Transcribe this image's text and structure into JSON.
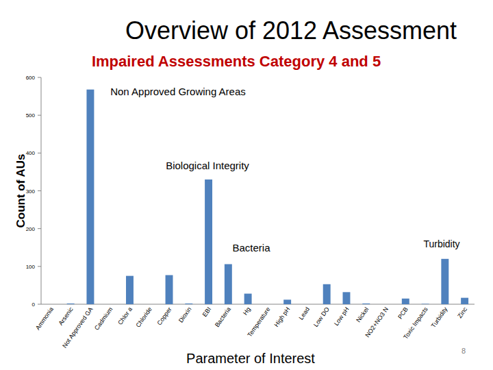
{
  "chart_data": {
    "type": "bar",
    "title": "Overview of 2012 Assessment",
    "subtitle": "Impaired Assessments Category 4 and 5",
    "x_label": "Parameter of Interest",
    "y_label": "Count of AUs",
    "categories": [
      "Ammonia",
      "Arsenic",
      "Not Approved GA",
      "Cadmium",
      "Chlor a",
      "Chloride",
      "Copper",
      "Dioxin",
      "EBI",
      "Bacteria",
      "Hg",
      "Temperature",
      "High pH",
      "Lead",
      "Low DO",
      "Low pH",
      "Nickel",
      "NO2+NO3 N",
      "PCB",
      "Toxic Impacts",
      "Turbidity",
      "Zinc"
    ],
    "values": [
      0,
      2,
      568,
      0,
      75,
      0,
      77,
      2,
      330,
      106,
      28,
      0,
      12,
      0,
      53,
      32,
      2,
      0,
      15,
      1,
      120,
      17
    ],
    "color": "#4f81bd",
    "ylim": [
      0,
      600
    ],
    "yticks": [
      0,
      100,
      200,
      300,
      400,
      500,
      600
    ],
    "grid": false,
    "annotations": [
      "Non Approved Growing Areas",
      "Biological Integrity",
      "Bacteria",
      "Turbidity"
    ]
  },
  "page_number": "8"
}
